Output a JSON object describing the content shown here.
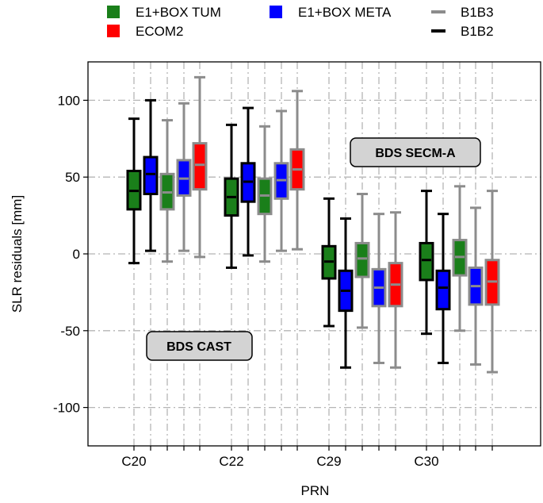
{
  "chart_data": {
    "type": "box",
    "xlabel": "PRN",
    "ylabel": "SLR residuals [mm]",
    "ylim": [
      -125,
      125
    ],
    "yticks": [
      -100,
      -50,
      0,
      50,
      100
    ],
    "grid": true,
    "legend_position": "top",
    "categories": [
      "C20",
      "C22",
      "C29",
      "C30"
    ],
    "legend": [
      {
        "label": "E1+BOX TUM",
        "color": "#1a7f1a",
        "marker": "square"
      },
      {
        "label": "ECOM2",
        "color": "#ff0000",
        "marker": "square"
      },
      {
        "label": "E1+BOX META",
        "color": "#0000ff",
        "marker": "square"
      },
      {
        "label": "B1B3",
        "color": "#8c8c8c",
        "marker": "line"
      },
      {
        "label": "B1B2",
        "color": "#000000",
        "marker": "line"
      }
    ],
    "annotations": [
      "BDS SECM-A",
      "BDS CAST"
    ],
    "boxes": [
      {
        "prn": "C20",
        "model": "E1+BOX TUM",
        "signal": "B1B2",
        "fill": "#1a7f1a",
        "edge": "#000000",
        "whislo": -6,
        "q1": 29,
        "med": 41,
        "q3": 54,
        "whishi": 88
      },
      {
        "prn": "C20",
        "model": "E1+BOX META",
        "signal": "B1B2",
        "fill": "#0000ff",
        "edge": "#000000",
        "whislo": 2,
        "q1": 39,
        "med": 52,
        "q3": 63,
        "whishi": 100
      },
      {
        "prn": "C20",
        "model": "E1+BOX TUM",
        "signal": "B1B3",
        "fill": "#1a7f1a",
        "edge": "#8c8c8c",
        "whislo": -5,
        "q1": 29,
        "med": 40,
        "q3": 52,
        "whishi": 87
      },
      {
        "prn": "C20",
        "model": "E1+BOX META",
        "signal": "B1B3",
        "fill": "#0000ff",
        "edge": "#8c8c8c",
        "whislo": 2,
        "q1": 38,
        "med": 49,
        "q3": 61,
        "whishi": 98
      },
      {
        "prn": "C20",
        "model": "ECOM2",
        "signal": "B1B3",
        "fill": "#ff0000",
        "edge": "#8c8c8c",
        "whislo": -2,
        "q1": 42,
        "med": 58,
        "q3": 72,
        "whishi": 115
      },
      {
        "prn": "C22",
        "model": "E1+BOX TUM",
        "signal": "B1B2",
        "fill": "#1a7f1a",
        "edge": "#000000",
        "whislo": -9,
        "q1": 25,
        "med": 37,
        "q3": 49,
        "whishi": 84
      },
      {
        "prn": "C22",
        "model": "E1+BOX META",
        "signal": "B1B2",
        "fill": "#0000ff",
        "edge": "#000000",
        "whislo": -1,
        "q1": 34,
        "med": 47,
        "q3": 59,
        "whishi": 95
      },
      {
        "prn": "C22",
        "model": "E1+BOX TUM",
        "signal": "B1B3",
        "fill": "#1a7f1a",
        "edge": "#8c8c8c",
        "whislo": -5,
        "q1": 26,
        "med": 38,
        "q3": 49,
        "whishi": 83
      },
      {
        "prn": "C22",
        "model": "E1+BOX META",
        "signal": "B1B3",
        "fill": "#0000ff",
        "edge": "#8c8c8c",
        "whislo": 2,
        "q1": 36,
        "med": 48,
        "q3": 59,
        "whishi": 93
      },
      {
        "prn": "C22",
        "model": "ECOM2",
        "signal": "B1B3",
        "fill": "#ff0000",
        "edge": "#8c8c8c",
        "whislo": 3,
        "q1": 42,
        "med": 55,
        "q3": 68,
        "whishi": 106
      },
      {
        "prn": "C29",
        "model": "E1+BOX TUM",
        "signal": "B1B2",
        "fill": "#1a7f1a",
        "edge": "#000000",
        "whislo": -47,
        "q1": -16,
        "med": -5,
        "q3": 5,
        "whishi": 36
      },
      {
        "prn": "C29",
        "model": "E1+BOX META",
        "signal": "B1B2",
        "fill": "#0000ff",
        "edge": "#000000",
        "whislo": -74,
        "q1": -37,
        "med": -24,
        "q3": -11,
        "whishi": 23
      },
      {
        "prn": "C29",
        "model": "E1+BOX TUM",
        "signal": "B1B3",
        "fill": "#1a7f1a",
        "edge": "#8c8c8c",
        "whislo": -48,
        "q1": -15,
        "med": -3,
        "q3": 7,
        "whishi": 39
      },
      {
        "prn": "C29",
        "model": "E1+BOX META",
        "signal": "B1B3",
        "fill": "#0000ff",
        "edge": "#8c8c8c",
        "whislo": -71,
        "q1": -34,
        "med": -22,
        "q3": -10,
        "whishi": 26
      },
      {
        "prn": "C29",
        "model": "ECOM2",
        "signal": "B1B3",
        "fill": "#ff0000",
        "edge": "#8c8c8c",
        "whislo": -74,
        "q1": -34,
        "med": -20,
        "q3": -6,
        "whishi": 27
      },
      {
        "prn": "C30",
        "model": "E1+BOX TUM",
        "signal": "B1B2",
        "fill": "#1a7f1a",
        "edge": "#000000",
        "whislo": -52,
        "q1": -17,
        "med": -4,
        "q3": 7,
        "whishi": 41
      },
      {
        "prn": "C30",
        "model": "E1+BOX META",
        "signal": "B1B2",
        "fill": "#0000ff",
        "edge": "#000000",
        "whislo": -71,
        "q1": -36,
        "med": -22,
        "q3": -11,
        "whishi": 26
      },
      {
        "prn": "C30",
        "model": "E1+BOX TUM",
        "signal": "B1B3",
        "fill": "#1a7f1a",
        "edge": "#8c8c8c",
        "whislo": -50,
        "q1": -14,
        "med": -2,
        "q3": 9,
        "whishi": 44
      },
      {
        "prn": "C30",
        "model": "E1+BOX META",
        "signal": "B1B3",
        "fill": "#0000ff",
        "edge": "#8c8c8c",
        "whislo": -72,
        "q1": -33,
        "med": -21,
        "q3": -9,
        "whishi": 30
      },
      {
        "prn": "C30",
        "model": "ECOM2",
        "signal": "B1B3",
        "fill": "#ff0000",
        "edge": "#8c8c8c",
        "whislo": -77,
        "q1": -33,
        "med": -18,
        "q3": -4,
        "whishi": 41
      }
    ]
  }
}
